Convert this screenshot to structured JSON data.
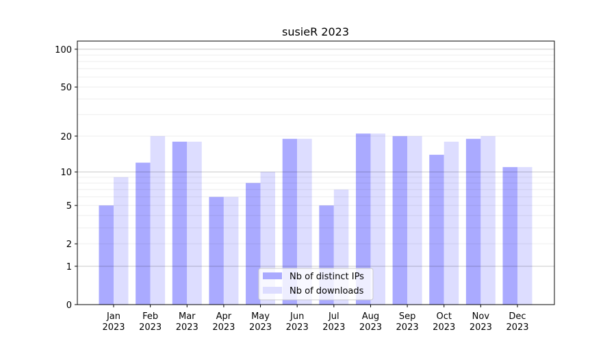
{
  "chart_data": {
    "type": "bar",
    "title": "susieR 2023",
    "xlabel": "",
    "ylabel": "",
    "y_scale": "log(1+y)",
    "ylim": [
      0,
      116
    ],
    "yticks": [
      0,
      1,
      2,
      5,
      10,
      20,
      50,
      100
    ],
    "grid": "horizontal major and minor",
    "legend_position": "bottom-center",
    "categories": [
      [
        "Jan",
        "2023"
      ],
      [
        "Feb",
        "2023"
      ],
      [
        "Mar",
        "2023"
      ],
      [
        "Apr",
        "2023"
      ],
      [
        "May",
        "2023"
      ],
      [
        "Jun",
        "2023"
      ],
      [
        "Jul",
        "2023"
      ],
      [
        "Aug",
        "2023"
      ],
      [
        "Sep",
        "2023"
      ],
      [
        "Oct",
        "2023"
      ],
      [
        "Nov",
        "2023"
      ],
      [
        "Dec",
        "2023"
      ]
    ],
    "series": [
      {
        "name": "Nb of distinct IPs",
        "color": "#aaaaff",
        "values": [
          5,
          12,
          18,
          6,
          8,
          19,
          5,
          21,
          20,
          14,
          19,
          11
        ]
      },
      {
        "name": "Nb of downloads",
        "color": "#ddddff",
        "values": [
          9,
          20,
          18,
          6,
          10,
          19,
          7,
          21,
          20,
          18,
          20,
          11
        ]
      }
    ]
  }
}
